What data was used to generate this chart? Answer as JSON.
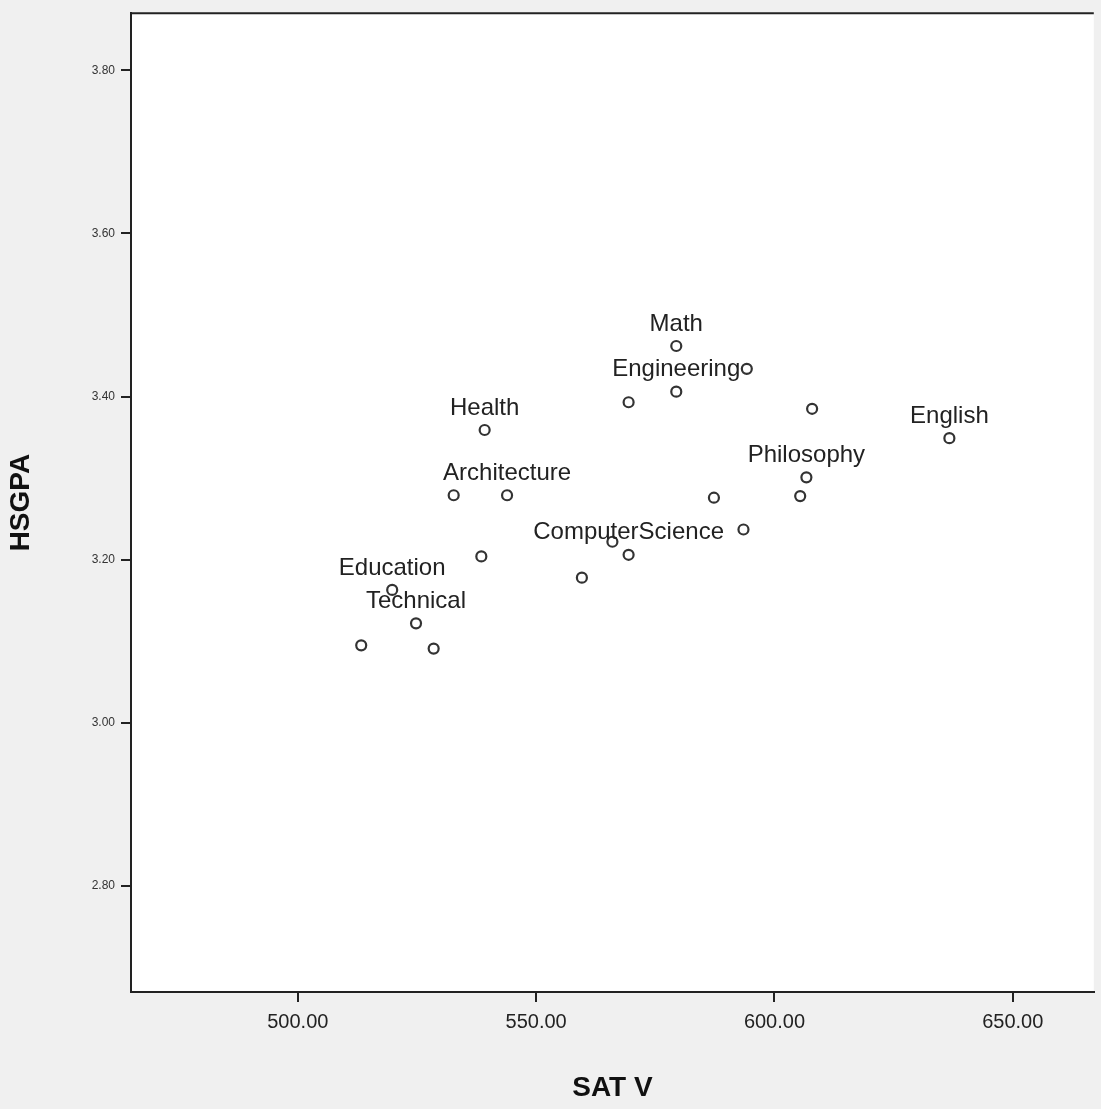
{
  "chart_data": {
    "type": "scatter",
    "xlabel": "SAT V",
    "ylabel": "HSGPA",
    "xlim": [
      465,
      667
    ],
    "xticks": [
      {
        "value": 500,
        "label": "500.00"
      },
      {
        "value": 550,
        "label": "550.00"
      },
      {
        "value": 600,
        "label": "600.00"
      },
      {
        "value": 650,
        "label": "650.00"
      }
    ],
    "ylim": [
      2.67,
      3.87
    ],
    "yticks": [
      {
        "value": 2.8,
        "label": "2.80"
      },
      {
        "value": 3.0,
        "label": "3.00"
      },
      {
        "value": 3.2,
        "label": "3.20"
      },
      {
        "value": 3.4,
        "label": "3.40"
      },
      {
        "value": 3.6,
        "label": "3.60"
      },
      {
        "value": 3.8,
        "label": "3.80"
      }
    ],
    "series": [
      {
        "color": "#333333",
        "x": [
          579.4,
          594.2,
          579.4,
          569.4,
          607.9,
          636.7,
          539.2,
          532.7,
          543.9,
          587.3,
          605.4,
          606.7,
          593.5,
          566.0,
          569.4,
          538.5,
          559.6,
          519.8,
          524.8,
          513.3,
          528.5
        ],
        "values": [
          3.462,
          3.434,
          3.406,
          3.393,
          3.385,
          3.349,
          3.359,
          3.279,
          3.279,
          3.276,
          3.278,
          3.301,
          3.237,
          3.222,
          3.206,
          3.204,
          3.178,
          3.163,
          3.122,
          3.095,
          3.091
        ]
      }
    ],
    "marker": "circle",
    "grid": false,
    "legend": false,
    "annotations": [
      {
        "text": "Math",
        "x": 579.4,
        "y": 3.462
      },
      {
        "text": "Engineering",
        "x": 579.4,
        "y": 3.406
      },
      {
        "text": "Health",
        "x": 539.2,
        "y": 3.359
      },
      {
        "text": "English",
        "x": 636.7,
        "y": 3.349
      },
      {
        "text": "Architecture",
        "x": 543.9,
        "y": 3.279
      },
      {
        "text": "Philosophy",
        "x": 606.7,
        "y": 3.301
      },
      {
        "text": "ComputerScience",
        "x": 569.4,
        "y": 3.206
      },
      {
        "text": "Education",
        "x": 519.8,
        "y": 3.163
      },
      {
        "text": "Technical",
        "x": 524.8,
        "y": 3.122
      }
    ]
  }
}
